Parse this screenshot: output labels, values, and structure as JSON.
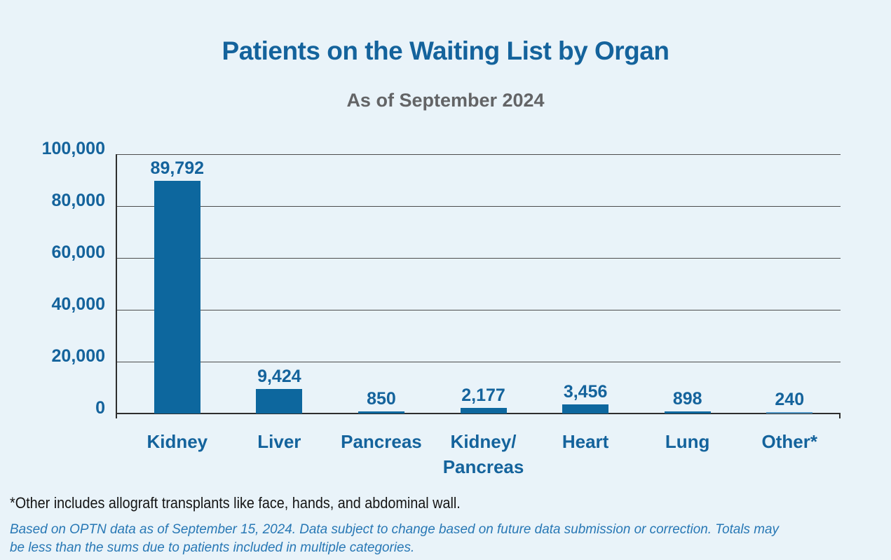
{
  "page": {
    "background": "#e9f3f9"
  },
  "header": {
    "title": "Patients on the Waiting List by Organ",
    "subtitle": "As of September 2024"
  },
  "chart_data": {
    "type": "bar",
    "title": "Patients on the Waiting List by Organ",
    "subtitle": "As of September 2024",
    "categories": [
      "Kidney",
      "Liver",
      "Pancreas",
      "Kidney/Pancreas",
      "Heart",
      "Lung",
      "Other*"
    ],
    "category_display": [
      "Kidney",
      "Liver",
      "Pancreas",
      "Kidney/\nPancreas",
      "Heart",
      "Lung",
      "Other*"
    ],
    "values": [
      89792,
      9424,
      850,
      2177,
      3456,
      898,
      240
    ],
    "value_labels": [
      "89,792",
      "9,424",
      "850",
      "2,177",
      "3,456",
      "898",
      "240"
    ],
    "xlabel": "",
    "ylabel": "",
    "ylim": [
      0,
      100000
    ],
    "y_ticks": [
      100000,
      80000,
      60000,
      40000,
      20000,
      0
    ],
    "y_tick_labels": [
      "100,000",
      "80,000",
      "60,000",
      "40,000",
      "20,000",
      "0"
    ],
    "grid": "horizontal-only",
    "legend": "none",
    "bar_color": "#0d679e",
    "other_bar_color": "#4f95c5",
    "axis_text_color": "#14639c"
  },
  "footnotes": {
    "other_note": "*Other includes allograft transplants like face, hands, and abdominal wall.",
    "source_lines": [
      "Based on OPTN data as of September 15, 2024. Data subject to change based on future data submission or correction. Totals may",
      "be less than the sums due to patients included in multiple categories."
    ]
  }
}
